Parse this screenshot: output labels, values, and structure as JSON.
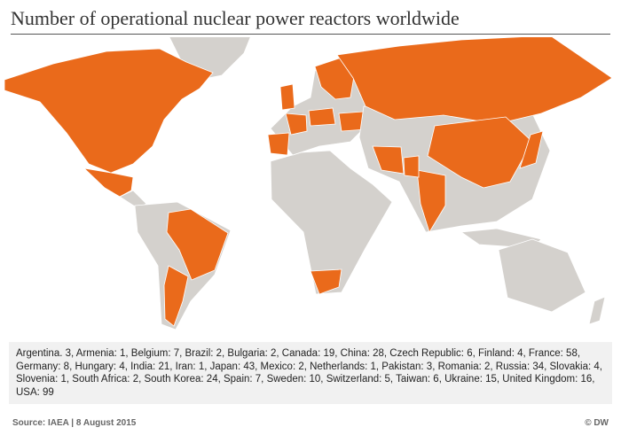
{
  "header": {
    "title": "Number of operational nuclear power reactors worldwide"
  },
  "legend": {
    "text": "Argentina. 3, Armenia: 1, Belgium: 7, Brazil: 2, Bulgaria: 2, Canada: 19, China: 28, Czech Republic: 6, Finland: 4, France: 58, Germany: 8, Hungary: 4, India: 21, Iran: 1, Japan: 43, Mexico: 2, Netherlands: 1, Pakistan: 3, Romania: 2, Russia: 34, Slovakia: 4, Slovenia: 1, South Africa: 2, South Korea: 24, Spain: 7, Sweden: 10, Switzerland: 5, Taiwan: 6, Ukraine: 15, United Kingdom: 16, USA: 99"
  },
  "footer": {
    "source": "Source: IAEA | 8 August 2015",
    "credit": "© DW"
  }
}
